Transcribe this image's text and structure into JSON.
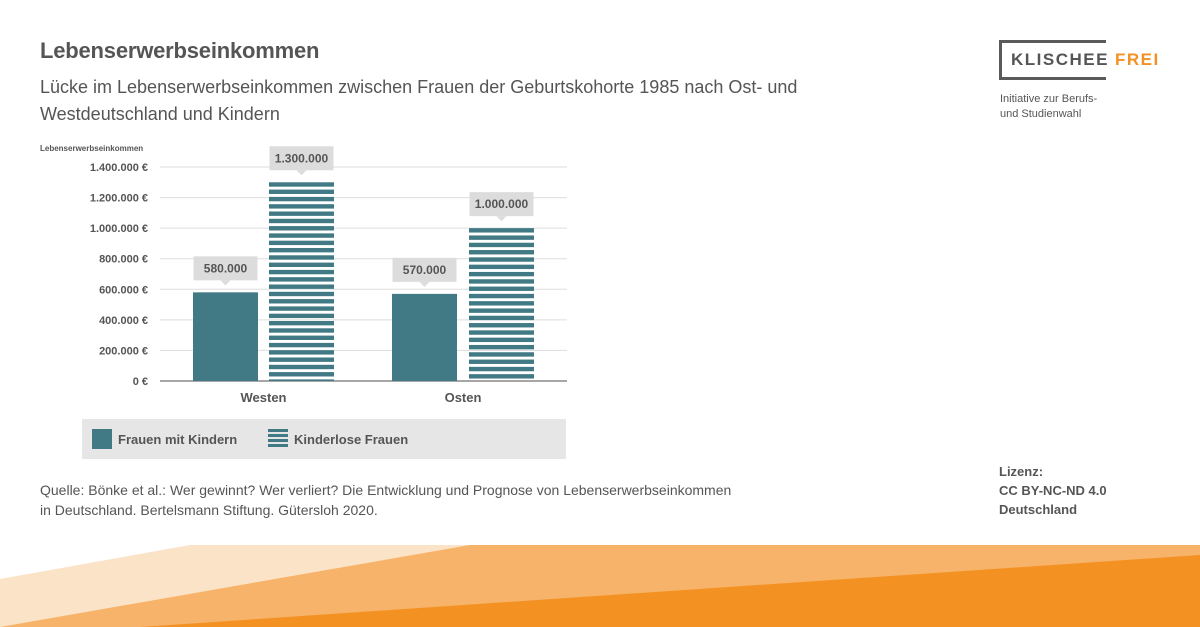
{
  "header": {
    "title": "Lebenserwerbseinkommen",
    "subtitle": "Lücke im Lebenserwerbseinkommen zwischen Frauen der Geburtskohorte 1985 nach Ost- und Westdeutschland und Kindern"
  },
  "logo": {
    "word_main": "KLISCHEE",
    "word_accent": "FREI",
    "tagline_line1": "Initiative zur Berufs-",
    "tagline_line2": "und Studienwahl"
  },
  "chart_data": {
    "type": "bar",
    "ylabel": "Lebenserwerbseinkommen",
    "categories": [
      "Westen",
      "Osten"
    ],
    "series": [
      {
        "name": "Frauen mit Kindern",
        "values": [
          580000,
          570000
        ],
        "labels": [
          "580.000",
          "570.000"
        ]
      },
      {
        "name": "Kinderlose Frauen",
        "values": [
          1300000,
          1000000
        ],
        "labels": [
          "1.300.000",
          "1.000.000"
        ]
      }
    ],
    "y_ticks": [
      {
        "value": 0,
        "label": "0 €"
      },
      {
        "value": 200000,
        "label": "200.000 €"
      },
      {
        "value": 400000,
        "label": "400.000 €"
      },
      {
        "value": 600000,
        "label": "600.000 €"
      },
      {
        "value": 800000,
        "label": "800.000 €"
      },
      {
        "value": 1000000,
        "label": "1.000.000 €"
      },
      {
        "value": 1200000,
        "label": "1.200.000 €"
      },
      {
        "value": 1400000,
        "label": "1.400.000 €"
      }
    ],
    "ylim": [
      0,
      1400000
    ],
    "grid": true,
    "legend_position": "bottom",
    "colors": {
      "bar": "#417a84",
      "label_box": "#dcdcdc",
      "grid": "#dddddd",
      "axis": "#888888"
    }
  },
  "source": {
    "line1": "Quelle: Bönke et al.: Wer gewinnt? Wer verliert? Die Entwicklung und Prognose von Lebenserwerbseinkommen",
    "line2": "in Deutschland. Bertelsmann Stiftung. Gütersloh 2020."
  },
  "license": {
    "label": "Lizenz:",
    "line1": "CC BY-NC-ND 4.0",
    "line2": "Deutschland"
  },
  "colors": {
    "accent": "#f39223",
    "text": "#555555"
  }
}
